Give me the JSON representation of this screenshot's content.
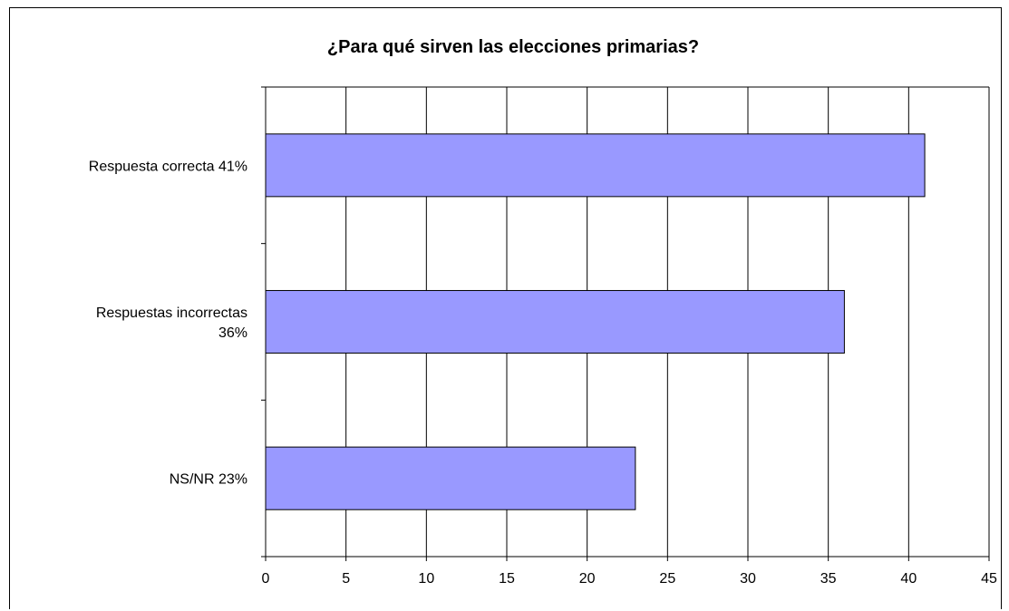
{
  "chart_data": {
    "type": "bar",
    "orientation": "horizontal",
    "title": "¿Para qué sirven las elecciones primarias?",
    "categories": [
      [
        "Respuesta correcta  41%"
      ],
      [
        "Respuestas incorrectas",
        "36%"
      ],
      [
        "NS/NR  23%"
      ]
    ],
    "values": [
      41,
      36,
      23
    ],
    "xlim": [
      0,
      45
    ],
    "xticks": [
      0,
      5,
      10,
      15,
      20,
      25,
      30,
      35,
      40,
      45
    ],
    "grid": true,
    "bar_color": "#9999ff",
    "bar_edge_color": "#000000"
  }
}
